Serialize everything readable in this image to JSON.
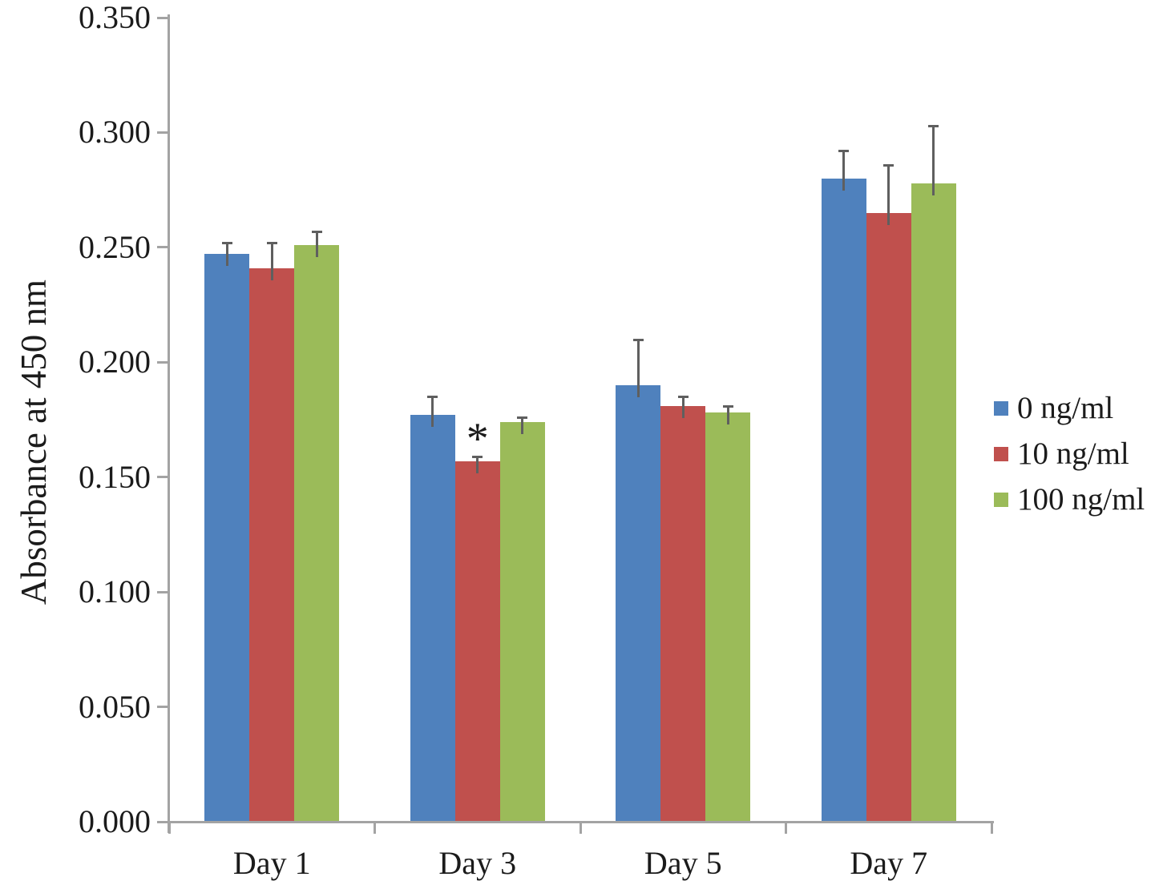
{
  "style": {
    "axis_color": "#A3A3A3",
    "error_bar_color": "#5F5F5F",
    "text_color": "#1B1B1B",
    "background": "#FFFFFF"
  },
  "chart_data": {
    "type": "bar",
    "title": "",
    "xlabel": "",
    "ylabel": "Absorbance at 450 nm",
    "categories": [
      "Day 1",
      "Day 3",
      "Day 5",
      "Day 7"
    ],
    "series": [
      {
        "name": "0 ng/ml",
        "color": "#4F81BD",
        "values": [
          0.247,
          0.177,
          0.19,
          0.28
        ],
        "errors_plus": [
          0.005,
          0.008,
          0.02,
          0.012
        ]
      },
      {
        "name": "10 ng/ml",
        "color": "#C0504D",
        "values": [
          0.241,
          0.157,
          0.181,
          0.265
        ],
        "errors_plus": [
          0.011,
          0.002,
          0.004,
          0.021
        ]
      },
      {
        "name": "100 ng/ml",
        "color": "#9BBB59",
        "values": [
          0.251,
          0.174,
          0.178,
          0.278
        ],
        "errors_plus": [
          0.006,
          0.002,
          0.003,
          0.025
        ]
      }
    ],
    "ylim": [
      0,
      0.35
    ],
    "ytick_step": 0.05,
    "ytick_labels": [
      "0.000",
      "0.050",
      "0.100",
      "0.150",
      "0.200",
      "0.250",
      "0.300",
      "0.350"
    ],
    "grid": false,
    "legend_position": "right",
    "annotations": [
      {
        "text": "*",
        "category": "Day 3",
        "series": "10 ng/ml",
        "meaning": "significance-marker"
      }
    ]
  }
}
